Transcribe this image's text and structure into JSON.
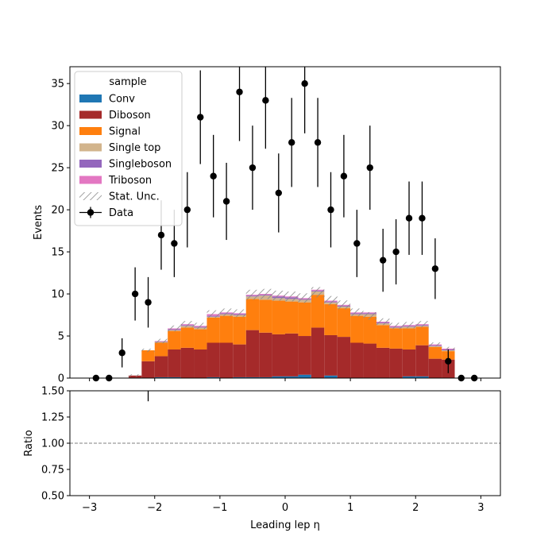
{
  "chart_data": {
    "type": "bar",
    "stacked": true,
    "xlabel": "Leading lep η",
    "ylabel": "Events",
    "ratio_ylabel": "Ratio",
    "xlim": [
      -3.3,
      3.3
    ],
    "ylim": [
      0,
      37
    ],
    "ratio_ylim": [
      0.5,
      1.5
    ],
    "ratio_reference": 1.0,
    "x_ticks": [
      -3,
      -2,
      -1,
      0,
      1,
      2,
      3
    ],
    "x_tick_labels": [
      "−3",
      "−2",
      "−1",
      "0",
      "1",
      "2",
      "3"
    ],
    "y_ticks": [
      0,
      5,
      10,
      15,
      20,
      25,
      30,
      35
    ],
    "ratio_ticks": [
      0.5,
      0.75,
      1.0,
      1.25,
      1.5
    ],
    "ratio_tick_labels": [
      "0.50",
      "0.75",
      "1.00",
      "1.25",
      "1.50"
    ],
    "legend": {
      "title": "sample",
      "placement": "top-left",
      "entries": [
        "Conv",
        "Diboson",
        "Signal",
        "Single top",
        "Singleboson",
        "Triboson",
        "Stat. Unc.",
        "Data"
      ]
    },
    "bin_edges": [
      -3.0,
      -2.8,
      -2.6,
      -2.4,
      -2.2,
      -2.0,
      -1.8,
      -1.6,
      -1.4,
      -1.2,
      -1.0,
      -0.8,
      -0.6,
      -0.4,
      -0.2,
      0.0,
      0.2,
      0.4,
      0.6,
      0.8,
      1.0,
      1.2,
      1.4,
      1.6,
      1.8,
      2.0,
      2.2,
      2.4,
      2.6,
      2.8,
      3.0
    ],
    "series": [
      {
        "name": "Conv",
        "color": "#1f77b4",
        "values": [
          0,
          0,
          0,
          0,
          0,
          0.1,
          0.1,
          0,
          0,
          0.1,
          0,
          0.1,
          0.1,
          0.1,
          0.2,
          0.2,
          0.4,
          -0.3,
          0.3,
          0,
          0,
          -0.4,
          0,
          0,
          0.2,
          0.2,
          0,
          0,
          0,
          0
        ]
      },
      {
        "name": "Diboson",
        "color": "#a52a2a",
        "values": [
          0,
          0,
          0,
          0.3,
          2.0,
          2.5,
          3.3,
          3.6,
          3.4,
          4.1,
          4.2,
          3.9,
          5.6,
          5.3,
          5.0,
          5.1,
          4.6,
          6.0,
          4.8,
          4.9,
          4.2,
          4.1,
          3.6,
          3.5,
          3.2,
          3.7,
          2.3,
          2.2,
          0,
          0
        ]
      },
      {
        "name": "Signal",
        "color": "#ff7f0e",
        "values": [
          0,
          0,
          0,
          0,
          1.3,
          1.6,
          2.2,
          2.4,
          2.4,
          3.0,
          3.2,
          3.3,
          3.7,
          3.9,
          4.0,
          3.8,
          4.0,
          3.9,
          3.7,
          3.4,
          3.2,
          3.2,
          2.7,
          2.4,
          2.5,
          2.2,
          1.4,
          1.0,
          0,
          0
        ]
      },
      {
        "name": "Single top",
        "color": "#d2b48c",
        "values": [
          0,
          0,
          0,
          0,
          0,
          0.1,
          0.1,
          0.2,
          0.2,
          0.1,
          0.2,
          0.2,
          0.3,
          0.5,
          0.3,
          0.3,
          0.3,
          0.4,
          0.2,
          0.2,
          0.2,
          0.3,
          0.2,
          0.1,
          0.2,
          0.1,
          0.1,
          0.1,
          0,
          0
        ]
      },
      {
        "name": "Singleboson",
        "color": "#9467bd",
        "values": [
          0,
          0,
          0,
          0,
          0,
          0.05,
          0.1,
          0.1,
          0.1,
          0.1,
          0.1,
          0.1,
          0.1,
          0.1,
          0.2,
          0.2,
          0.1,
          0.1,
          0.1,
          0.1,
          0.1,
          0.1,
          0.1,
          0.1,
          0.1,
          0.1,
          0.1,
          0.1,
          0,
          0
        ]
      },
      {
        "name": "Triboson",
        "color": "#e377c2",
        "values": [
          0,
          0,
          0,
          0,
          0,
          0.05,
          0.1,
          0.1,
          0.1,
          0.2,
          0.1,
          0.1,
          0.1,
          0.1,
          0.1,
          0.1,
          0.1,
          0.1,
          0.1,
          0.1,
          0.1,
          0.1,
          0.1,
          0.1,
          0.1,
          0.1,
          0.1,
          0.1,
          0,
          0
        ]
      }
    ],
    "stat_unc_fraction": 0.06,
    "data": {
      "name": "Data",
      "x": [
        -2.9,
        -2.7,
        -2.5,
        -2.3,
        -2.1,
        -1.9,
        -1.7,
        -1.5,
        -1.3,
        -1.1,
        -0.9,
        -0.7,
        -0.5,
        -0.3,
        -0.1,
        0.1,
        0.3,
        0.5,
        0.7,
        0.9,
        1.1,
        1.3,
        1.5,
        1.7,
        1.9,
        2.1,
        2.3,
        2.5,
        2.7,
        2.9
      ],
      "y": [
        0,
        0,
        3,
        10,
        9,
        17,
        16,
        20,
        31,
        24,
        21,
        34,
        25,
        33,
        22,
        28,
        35,
        28,
        20,
        24,
        16,
        25,
        14,
        15,
        19,
        19,
        13,
        2,
        0,
        0
      ]
    },
    "ratio_points": [
      {
        "x": -2.1,
        "low": 1.4,
        "high": 1.5
      }
    ]
  }
}
